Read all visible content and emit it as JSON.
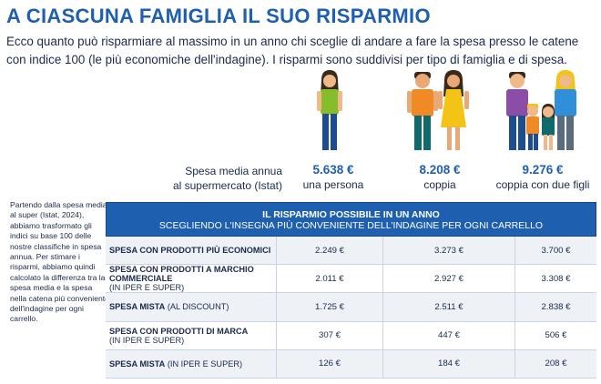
{
  "header": {
    "title": "A CIASCUNA FAMIGLIA IL SUO RISPARMIO",
    "subtitle": "Ecco quanto può risparmiare al massimo in un anno chi sceglie di andare a fare la spesa presso le catene con indice 100 (le più economiche dell'indagine). I risparmi sono suddivisi per tipo di famiglia e di spesa."
  },
  "average": {
    "label_line1": "Spesa media annua",
    "label_line2": "al supermercato (Istat)",
    "households": [
      {
        "value": "5.638 €",
        "caption": "una persona"
      },
      {
        "value": "8.208 €",
        "caption": "coppia"
      },
      {
        "value": "9.276 €",
        "caption": "coppia con due figli"
      }
    ]
  },
  "side_note": "Partendo dalla spesa media al super (Istat, 2024), abbiamo trasformato gli indici su base 100 delle nostre classifiche in spesa annua. Per stimare i risparmi, abbiamo quindi calcolato la differenza tra la spesa media e la spesa nella catena più conveniente dell'indagine per ogni carrello.",
  "table": {
    "heading1": "IL RISPARMIO POSSIBILE IN UN ANNO",
    "heading2": "SCEGLIENDO L'INSEGNA PIÙ CONVENIENTE DELL'INDAGINE PER OGNI CARRELLO",
    "rows": [
      {
        "main": "SPESA CON PRODOTTI PIÙ ECONOMICI",
        "note": "",
        "v1": "2.249 €",
        "v2": "3.273 €",
        "v3": "3.700 €"
      },
      {
        "main": "SPESA CON  PRODOTTI A MARCHIO COMMERCIALE",
        "note": "(IN IPER E SUPER)",
        "v1": "2.011 €",
        "v2": "2.927 €",
        "v3": "3.308 €"
      },
      {
        "main": "SPESA MISTA",
        "note": "(AL DISCOUNT)",
        "v1": "1.725 €",
        "v2": "2.511 €",
        "v3": "2.838 €"
      },
      {
        "main": "SPESA CON PRODOTTI DI MARCA",
        "note": "(IN IPER E SUPER)",
        "v1": "307 €",
        "v2": "447 €",
        "v3": "506 €"
      },
      {
        "main": "SPESA MISTA",
        "note": "(IN IPER E SUPER)",
        "v1": "126 €",
        "v2": "184 €",
        "v3": "208 €"
      }
    ]
  },
  "colors": {
    "accent": "#1f5fb0",
    "row_alt": "#eef1f6"
  }
}
